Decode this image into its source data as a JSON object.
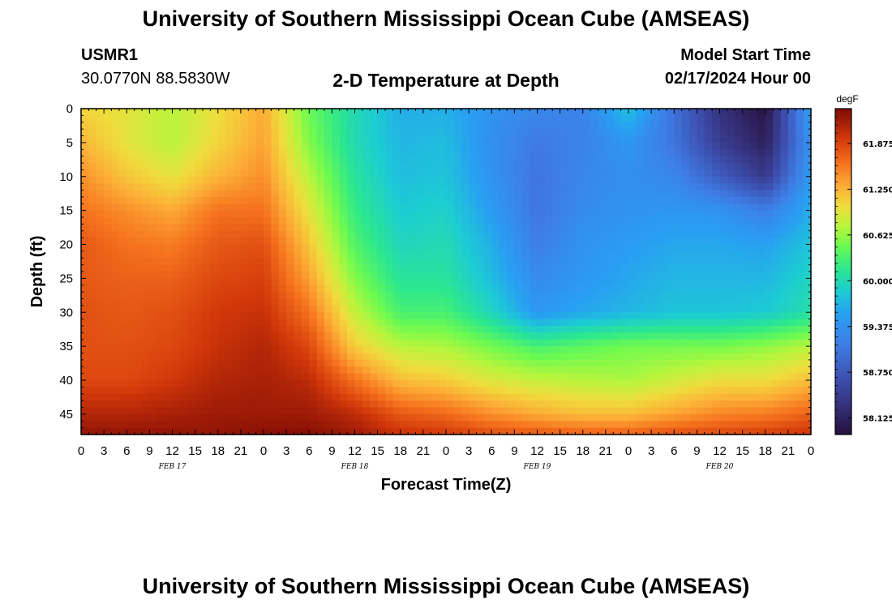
{
  "header": {
    "title": "University of Southern Mississippi Ocean Cube (AMSEAS)",
    "station_id": "USMR1",
    "station_coords": "30.0770N  88.5830W",
    "plot_title": "2-D Temperature at Depth",
    "model_start_label": "Model Start Time",
    "model_start_value": "02/17/2024 Hour 00"
  },
  "footer": {
    "title": "University of Southern Mississippi Ocean Cube (AMSEAS)"
  },
  "chart_data": {
    "type": "heatmap",
    "title": "2-D Temperature at Depth",
    "xlabel": "Forecast Time(Z)",
    "ylabel": "Depth (ft)",
    "x_ticks": [
      "0",
      "3",
      "6",
      "9",
      "12",
      "15",
      "18",
      "21",
      "0",
      "3",
      "6",
      "9",
      "12",
      "15",
      "18",
      "21",
      "0",
      "3",
      "6",
      "9",
      "12",
      "15",
      "18",
      "21",
      "0",
      "3",
      "6",
      "9",
      "12",
      "15",
      "18",
      "21",
      "0"
    ],
    "x_hours": [
      0,
      3,
      6,
      9,
      12,
      15,
      18,
      21,
      24,
      27,
      30,
      33,
      36,
      39,
      42,
      45,
      48,
      51,
      54,
      57,
      60,
      63,
      66,
      69,
      72,
      75,
      78,
      81,
      84,
      87,
      90,
      93,
      96
    ],
    "x_range": [
      0,
      96
    ],
    "day_labels": [
      {
        "label": "FEB 17",
        "hour": 12
      },
      {
        "label": "FEB 18",
        "hour": 36
      },
      {
        "label": "FEB 19",
        "hour": 60
      },
      {
        "label": "FEB 20",
        "hour": 84
      }
    ],
    "y_ticks": [
      "0",
      "5",
      "10",
      "15",
      "20",
      "25",
      "30",
      "35",
      "40",
      "45"
    ],
    "y_values": [
      0,
      5,
      10,
      15,
      20,
      25,
      30,
      35,
      40,
      45
    ],
    "y_range": [
      0,
      48
    ],
    "colorbar": {
      "units": "degF",
      "ticks": [
        "61.875",
        "61.250",
        "60.625",
        "60.000",
        "59.375",
        "58.750",
        "58.125"
      ],
      "tick_values": [
        61.875,
        61.25,
        60.625,
        60.0,
        59.375,
        58.75,
        58.125
      ],
      "range": [
        57.9,
        62.35
      ]
    },
    "depths_ft": [
      0,
      5,
      10,
      15,
      20,
      25,
      30,
      35,
      40,
      45,
      48
    ],
    "hours": [
      0,
      6,
      12,
      18,
      24,
      30,
      36,
      42,
      48,
      54,
      60,
      66,
      72,
      78,
      84,
      90,
      96
    ],
    "temperature_degF": [
      [
        61.05,
        60.95,
        60.75,
        61.0,
        61.3,
        60.45,
        60.0,
        59.65,
        59.65,
        59.4,
        59.25,
        59.2,
        59.8,
        59.0,
        58.3,
        57.95,
        59.55
      ],
      [
        61.25,
        60.95,
        60.75,
        61.05,
        61.35,
        60.55,
        60.0,
        59.7,
        59.75,
        59.35,
        59.1,
        59.2,
        59.45,
        59.05,
        58.45,
        58.1,
        59.4
      ],
      [
        61.45,
        61.15,
        60.95,
        61.25,
        61.45,
        60.75,
        60.1,
        59.75,
        59.8,
        59.4,
        59.05,
        59.25,
        59.35,
        59.25,
        58.8,
        58.4,
        59.5
      ],
      [
        61.6,
        61.45,
        61.3,
        61.6,
        61.6,
        60.95,
        60.2,
        59.85,
        59.9,
        59.5,
        59.05,
        59.3,
        59.4,
        59.45,
        59.4,
        59.15,
        59.65
      ],
      [
        61.75,
        61.6,
        61.55,
        61.75,
        61.8,
        61.15,
        60.35,
        59.95,
        60.0,
        59.65,
        59.15,
        59.4,
        59.5,
        59.6,
        59.6,
        59.55,
        59.8
      ],
      [
        61.75,
        61.7,
        61.7,
        61.85,
        61.9,
        61.35,
        60.55,
        60.1,
        60.1,
        59.75,
        59.3,
        59.45,
        59.6,
        59.7,
        59.7,
        59.7,
        59.95
      ],
      [
        61.8,
        61.75,
        61.8,
        61.95,
        62.0,
        61.6,
        60.8,
        60.3,
        60.3,
        59.95,
        59.45,
        59.6,
        59.7,
        59.8,
        59.8,
        59.85,
        60.05
      ],
      [
        61.8,
        61.8,
        61.85,
        62.0,
        62.1,
        61.85,
        61.1,
        60.75,
        60.7,
        60.5,
        60.3,
        60.4,
        60.5,
        60.5,
        60.5,
        60.6,
        60.75
      ],
      [
        61.85,
        61.85,
        61.95,
        62.1,
        62.15,
        62.05,
        61.6,
        61.2,
        61.1,
        60.9,
        60.8,
        60.75,
        60.7,
        60.85,
        61.0,
        61.0,
        61.2
      ],
      [
        62.1,
        62.1,
        62.15,
        62.2,
        62.2,
        62.2,
        62.05,
        61.75,
        61.65,
        61.45,
        61.3,
        61.2,
        61.2,
        61.35,
        61.5,
        61.55,
        61.7
      ],
      [
        62.25,
        62.25,
        62.25,
        62.25,
        62.3,
        62.3,
        62.2,
        62.0,
        61.95,
        61.8,
        61.75,
        61.7,
        61.7,
        61.8,
        61.85,
        61.9,
        62.0
      ]
    ]
  }
}
